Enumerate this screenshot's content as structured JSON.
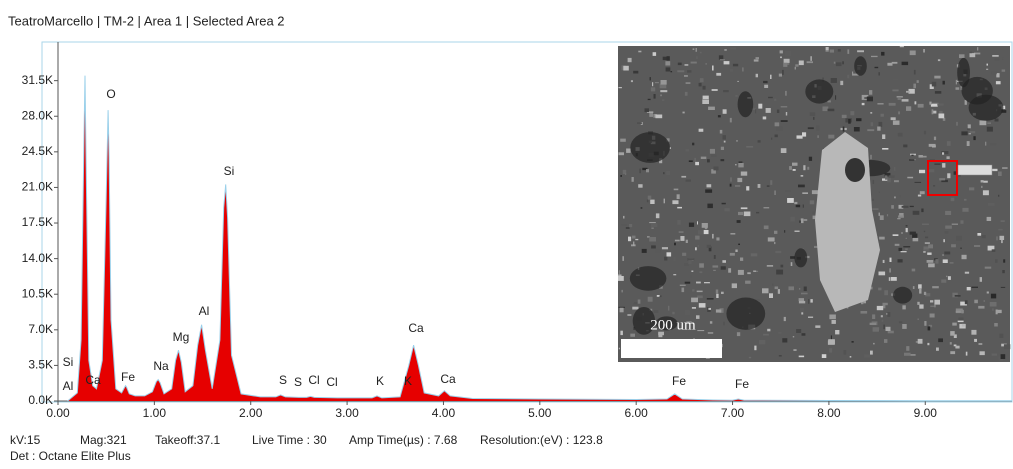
{
  "chart_data": {
    "type": "area",
    "title": "TeatroMarcello | TM-2 | Area 1 | Selected Area 2",
    "x": [
      0.1,
      0.2,
      0.24,
      0.27,
      0.28,
      0.29,
      0.32,
      0.36,
      0.4,
      0.46,
      0.5,
      0.52,
      0.53,
      0.55,
      0.6,
      0.66,
      0.7,
      0.71,
      0.74,
      0.8,
      0.9,
      0.98,
      1.02,
      1.04,
      1.06,
      1.1,
      1.18,
      1.22,
      1.25,
      1.28,
      1.32,
      1.4,
      1.45,
      1.49,
      1.53,
      1.6,
      1.68,
      1.72,
      1.74,
      1.76,
      1.8,
      1.9,
      2.1,
      2.26,
      2.31,
      2.36,
      2.5,
      2.58,
      2.62,
      2.66,
      2.9,
      3.26,
      3.31,
      3.36,
      3.55,
      3.64,
      3.69,
      3.74,
      3.8,
      3.95,
      4.01,
      4.07,
      4.3,
      5.0,
      6.0,
      6.32,
      6.4,
      6.48,
      6.8,
      7.0,
      7.06,
      7.12,
      8.0,
      9.0,
      9.9
    ],
    "values": [
      0,
      800,
      6000,
      26000,
      32000,
      25000,
      4000,
      1500,
      1200,
      4000,
      20000,
      28600,
      24000,
      8000,
      1200,
      800,
      1500,
      1400,
      700,
      500,
      500,
      900,
      1900,
      2100,
      1800,
      700,
      1200,
      4000,
      5000,
      3800,
      900,
      1500,
      5500,
      7500,
      5000,
      1200,
      6000,
      19000,
      21300,
      18000,
      4500,
      700,
      400,
      400,
      600,
      400,
      350,
      350,
      450,
      350,
      300,
      300,
      500,
      300,
      400,
      3500,
      5500,
      3500,
      800,
      500,
      1000,
      500,
      250,
      200,
      150,
      200,
      700,
      200,
      100,
      80,
      200,
      80,
      50,
      30,
      20
    ],
    "color": "#e60000",
    "xlim": [
      0,
      9.9
    ],
    "xticks": [
      {
        "value": 0,
        "label": "0.00"
      },
      {
        "value": 1,
        "label": "1.00"
      },
      {
        "value": 2,
        "label": "2.00"
      },
      {
        "value": 3,
        "label": "3.00"
      },
      {
        "value": 4,
        "label": "4.00"
      },
      {
        "value": 5,
        "label": "5.00"
      },
      {
        "value": 6,
        "label": "6.00"
      },
      {
        "value": 7,
        "label": "7.00"
      },
      {
        "value": 8,
        "label": "8.00"
      },
      {
        "value": 9,
        "label": "9.00"
      }
    ],
    "ylim": [
      0,
      35300
    ],
    "yticks": [
      {
        "value": 0,
        "label": "0.0K"
      },
      {
        "value": 3500,
        "label": "3.5K"
      },
      {
        "value": 7000,
        "label": "7.0K"
      },
      {
        "value": 10500,
        "label": "10.5K"
      },
      {
        "value": 14000,
        "label": "14.0K"
      },
      {
        "value": 17500,
        "label": "17.5K"
      },
      {
        "value": 21000,
        "label": "21.0K"
      },
      {
        "value": 24500,
        "label": "24.5K"
      },
      {
        "value": 28000,
        "label": "28.0K"
      },
      {
        "value": 31500,
        "label": "31.5K"
      }
    ],
    "peak_labels": [
      "Al",
      "Si",
      "Ca",
      "O",
      "Fe",
      "Na",
      "Mg",
      "Al",
      "Si",
      "S",
      "S",
      "Cl",
      "Cl",
      "K",
      "K",
      "Ca",
      "Ca",
      "Fe",
      "Fe"
    ]
  },
  "inset": {
    "scale_bar": "200 um"
  },
  "footer": [
    "kV:15",
    "Mag:321",
    "Takeoff:37.1",
    "Live Time : 30",
    "Amp Time(µs) : 7.68",
    "Resolution:(eV) : 123.8",
    "Det : Octane Elite Plus"
  ]
}
